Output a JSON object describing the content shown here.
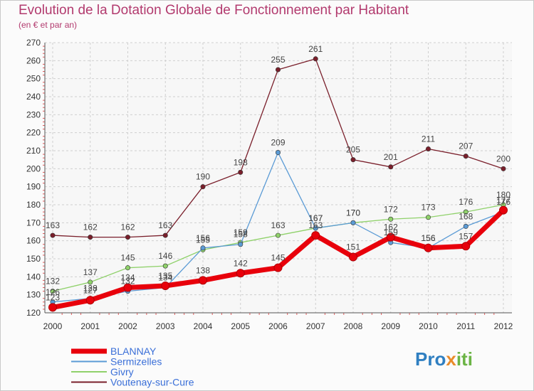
{
  "chart_data": {
    "type": "line",
    "title": "Evolution de la Dotation Globale de Fonctionnement par Habitant",
    "subtitle": "(en € et par an)",
    "xlabel": "",
    "ylabel": "",
    "ylim": [
      120,
      270
    ],
    "ytick_step": 10,
    "grid": true,
    "categories": [
      "2000",
      "2001",
      "2002",
      "2003",
      "2004",
      "2005",
      "2006",
      "2007",
      "2008",
      "2009",
      "2010",
      "2011",
      "2012"
    ],
    "series": [
      {
        "name": "BLANNAY",
        "color": "#e8000b",
        "values": [
          123,
          127,
          134,
          135,
          138,
          142,
          145,
          163,
          151,
          162,
          156,
          157,
          177
        ]
      },
      {
        "name": "Sermizelles",
        "color": "#5b9bd5",
        "values": [
          126,
          128,
          132,
          134,
          156,
          158,
          209,
          167,
          170,
          159,
          156,
          168,
          176
        ]
      },
      {
        "name": "Givry",
        "color": "#8fd16a",
        "values": [
          132,
          137,
          145,
          146,
          155,
          159,
          163,
          167,
          170,
          172,
          173,
          176,
          180
        ]
      },
      {
        "name": "Voutenay-sur-Cure",
        "color": "#7a1f2b",
        "values": [
          163,
          162,
          162,
          163,
          190,
          198,
          255,
          261,
          205,
          201,
          211,
          207,
          200
        ]
      }
    ],
    "legend_position": "bottom-left"
  },
  "logo": {
    "text": "Proxiti",
    "p1": "Pro",
    "p2": "x",
    "p3": "iti"
  }
}
